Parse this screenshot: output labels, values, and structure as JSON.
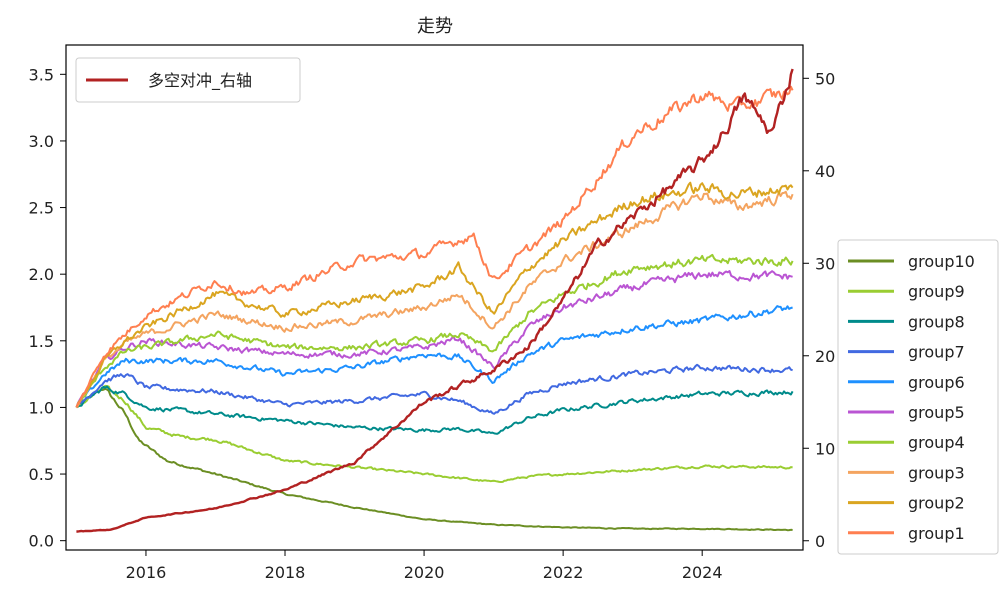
{
  "chart_data": {
    "type": "line",
    "title": "走势",
    "xlabel": "",
    "ylabel": "",
    "x_ticks": [
      "2016",
      "2018",
      "2020",
      "2022",
      "2024"
    ],
    "x_range": [
      2014.85,
      2025.45
    ],
    "y_left": {
      "range": [
        -0.07,
        3.72
      ],
      "ticks": [
        "0.0",
        "0.5",
        "1.0",
        "1.5",
        "2.0",
        "2.5",
        "3.0",
        "3.5"
      ]
    },
    "y_right": {
      "range": [
        -1,
        53.6
      ],
      "ticks": [
        "0",
        "10",
        "20",
        "30",
        "40",
        "50"
      ]
    },
    "grid": false,
    "legends": {
      "top_left": "多空对冲_右轴",
      "right": [
        "group10",
        "group9",
        "group8",
        "group7",
        "group6",
        "group5",
        "group4",
        "group3",
        "group2",
        "group1"
      ]
    },
    "series": [
      {
        "name": "group10",
        "axis": "left",
        "color": "#6b8e23",
        "x": [
          2015.0,
          2015.4,
          2015.7,
          2015.9,
          2016.3,
          2017.0,
          2018.0,
          2019.0,
          2020.0,
          2021.0,
          2022.0,
          2023.0,
          2024.0,
          2025.3
        ],
        "values": [
          1.0,
          1.15,
          0.95,
          0.75,
          0.6,
          0.5,
          0.35,
          0.25,
          0.16,
          0.12,
          0.1,
          0.09,
          0.09,
          0.08
        ]
      },
      {
        "name": "group9",
        "axis": "left",
        "color": "#9acd32",
        "x": [
          2015.0,
          2015.4,
          2015.7,
          2016.0,
          2016.5,
          2017.0,
          2018.0,
          2019.0,
          2020.0,
          2021.0,
          2021.5,
          2022.0,
          2023.0,
          2024.0,
          2025.3
        ],
        "values": [
          1.0,
          1.15,
          1.05,
          0.85,
          0.78,
          0.76,
          0.6,
          0.55,
          0.5,
          0.44,
          0.48,
          0.5,
          0.53,
          0.56,
          0.55
        ]
      },
      {
        "name": "group8",
        "axis": "left",
        "color": "#008b8b",
        "x": [
          2015.0,
          2015.4,
          2015.7,
          2016.0,
          2017.0,
          2018.0,
          2019.0,
          2020.0,
          2020.5,
          2021.0,
          2021.5,
          2022.0,
          2023.0,
          2024.0,
          2025.3
        ],
        "values": [
          1.0,
          1.15,
          1.1,
          1.0,
          0.95,
          0.9,
          0.85,
          0.83,
          0.84,
          0.8,
          0.92,
          0.98,
          1.05,
          1.1,
          1.12
        ]
      },
      {
        "name": "group7",
        "axis": "left",
        "color": "#4169e1",
        "x": [
          2015.0,
          2015.4,
          2015.7,
          2016.0,
          2017.0,
          2018.0,
          2019.0,
          2020.0,
          2020.5,
          2021.0,
          2021.5,
          2022.0,
          2023.0,
          2024.0,
          2025.3
        ],
        "values": [
          1.0,
          1.2,
          1.25,
          1.15,
          1.12,
          1.02,
          1.05,
          1.1,
          1.05,
          0.95,
          1.1,
          1.18,
          1.25,
          1.3,
          1.28
        ]
      },
      {
        "name": "group6",
        "axis": "left",
        "color": "#1e90ff",
        "x": [
          2015.0,
          2015.4,
          2015.7,
          2016.0,
          2017.0,
          2018.0,
          2019.0,
          2020.0,
          2020.5,
          2021.0,
          2021.5,
          2022.0,
          2023.0,
          2024.0,
          2025.3
        ],
        "values": [
          1.0,
          1.25,
          1.35,
          1.35,
          1.35,
          1.25,
          1.3,
          1.4,
          1.38,
          1.2,
          1.4,
          1.5,
          1.6,
          1.65,
          1.75
        ]
      },
      {
        "name": "group5",
        "axis": "left",
        "color": "#ba55d3",
        "x": [
          2015.0,
          2015.4,
          2015.7,
          2016.0,
          2017.0,
          2018.0,
          2019.0,
          2020.0,
          2020.5,
          2021.0,
          2021.5,
          2022.0,
          2023.0,
          2024.0,
          2025.3
        ],
        "values": [
          1.0,
          1.35,
          1.45,
          1.5,
          1.45,
          1.4,
          1.4,
          1.45,
          1.52,
          1.3,
          1.6,
          1.75,
          1.9,
          2.0,
          1.98
        ]
      },
      {
        "name": "group4",
        "axis": "left",
        "color": "#9acd32",
        "x": [
          2015.0,
          2015.4,
          2015.7,
          2016.0,
          2017.0,
          2018.0,
          2019.0,
          2020.0,
          2020.5,
          2021.0,
          2021.5,
          2022.0,
          2023.0,
          2024.0,
          2025.3
        ],
        "values": [
          1.0,
          1.3,
          1.42,
          1.45,
          1.55,
          1.45,
          1.45,
          1.5,
          1.55,
          1.42,
          1.7,
          1.85,
          2.05,
          2.1,
          2.1
        ]
      },
      {
        "name": "group3",
        "axis": "left",
        "color": "#f4a460",
        "x": [
          2015.0,
          2015.4,
          2015.7,
          2016.0,
          2017.0,
          2018.0,
          2019.0,
          2020.0,
          2020.5,
          2021.0,
          2021.5,
          2022.0,
          2023.0,
          2024.0,
          2024.5,
          2025.3
        ],
        "values": [
          1.0,
          1.35,
          1.48,
          1.55,
          1.7,
          1.6,
          1.65,
          1.75,
          1.85,
          1.6,
          1.9,
          2.1,
          2.35,
          2.6,
          2.5,
          2.6
        ]
      },
      {
        "name": "group2",
        "axis": "left",
        "color": "#daa520",
        "x": [
          2015.0,
          2015.4,
          2015.7,
          2016.0,
          2017.0,
          2018.0,
          2019.0,
          2020.0,
          2020.5,
          2021.0,
          2021.5,
          2022.0,
          2023.0,
          2024.0,
          2024.5,
          2025.3
        ],
        "values": [
          1.0,
          1.35,
          1.5,
          1.6,
          1.85,
          1.7,
          1.8,
          1.9,
          2.05,
          1.7,
          2.05,
          2.25,
          2.55,
          2.65,
          2.6,
          2.65
        ]
      },
      {
        "name": "group1",
        "axis": "left",
        "color": "#ff7f50",
        "x": [
          2015.0,
          2015.4,
          2015.7,
          2016.0,
          2017.0,
          2017.5,
          2018.0,
          2019.0,
          2020.0,
          2020.7,
          2021.0,
          2021.3,
          2022.0,
          2023.0,
          2024.0,
          2024.5,
          2025.3
        ],
        "values": [
          1.0,
          1.4,
          1.55,
          1.7,
          1.95,
          1.85,
          1.9,
          2.1,
          2.15,
          2.3,
          1.95,
          2.1,
          2.4,
          3.05,
          3.35,
          3.25,
          3.38
        ]
      },
      {
        "name": "多空对冲_右轴",
        "axis": "right",
        "color": "#b22222",
        "x": [
          2015.0,
          2015.5,
          2016.0,
          2017.0,
          2018.0,
          2019.0,
          2020.0,
          2021.0,
          2021.5,
          2022.0,
          2022.5,
          2023.0,
          2023.5,
          2024.0,
          2024.3,
          2024.6,
          2025.0,
          2025.3
        ],
        "values": [
          1.0,
          1.2,
          2.5,
          3.5,
          5.5,
          8.5,
          15.0,
          18.5,
          21.0,
          26.0,
          32.0,
          35.0,
          38.0,
          41.0,
          44.0,
          48.0,
          44.0,
          51.0
        ]
      }
    ]
  }
}
